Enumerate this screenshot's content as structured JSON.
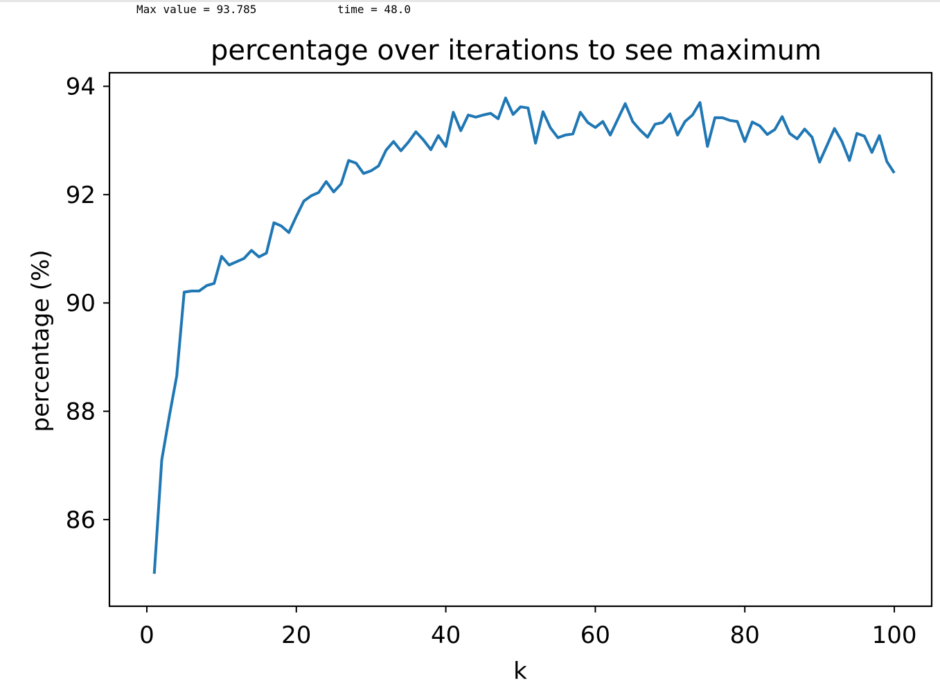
{
  "output": {
    "max_value_text": "Max value = 93.785",
    "time_text": "time = 48.0"
  },
  "chart_data": {
    "type": "line",
    "title": "percentage over iterations to see maximum",
    "xlabel": "k",
    "ylabel": "percentage (%)",
    "xlim": [
      -5,
      105
    ],
    "ylim": [
      84.4,
      94.25
    ],
    "xticks": [
      0,
      20,
      40,
      60,
      80,
      100
    ],
    "yticks": [
      86,
      88,
      90,
      92,
      94
    ],
    "grid": false,
    "series": [
      {
        "color": "#1f77b4",
        "x": [
          1,
          2,
          3,
          4,
          5,
          6,
          7,
          8,
          9,
          10,
          11,
          12,
          13,
          14,
          15,
          16,
          17,
          18,
          19,
          20,
          21,
          22,
          23,
          24,
          25,
          26,
          27,
          28,
          29,
          30,
          31,
          32,
          33,
          34,
          35,
          36,
          37,
          38,
          39,
          40,
          41,
          42,
          43,
          44,
          45,
          46,
          47,
          48,
          49,
          50,
          51,
          52,
          53,
          54,
          55,
          56,
          57,
          58,
          59,
          60,
          61,
          62,
          63,
          64,
          65,
          66,
          67,
          68,
          69,
          70,
          71,
          72,
          73,
          74,
          75,
          76,
          77,
          78,
          79,
          80,
          81,
          82,
          83,
          84,
          85,
          86,
          87,
          88,
          89,
          90,
          91,
          92,
          93,
          94,
          95,
          96,
          97,
          98,
          99,
          100
        ],
        "values": [
          85.0,
          87.1,
          87.9,
          88.65,
          90.2,
          90.22,
          90.22,
          90.32,
          90.36,
          90.86,
          90.7,
          90.76,
          90.82,
          90.97,
          90.85,
          90.92,
          91.48,
          91.42,
          91.3,
          91.6,
          91.88,
          91.98,
          92.04,
          92.24,
          92.05,
          92.2,
          92.63,
          92.58,
          92.39,
          92.44,
          92.53,
          92.82,
          92.98,
          92.81,
          92.97,
          93.16,
          93.01,
          92.83,
          93.09,
          92.89,
          93.52,
          93.18,
          93.47,
          93.43,
          93.47,
          93.5,
          93.4,
          93.785,
          93.48,
          93.62,
          93.6,
          92.95,
          93.53,
          93.23,
          93.05,
          93.1,
          93.12,
          93.52,
          93.33,
          93.24,
          93.35,
          93.1,
          93.39,
          93.68,
          93.35,
          93.19,
          93.06,
          93.3,
          93.33,
          93.49,
          93.1,
          93.35,
          93.47,
          93.7,
          92.89,
          93.42,
          93.42,
          93.37,
          93.35,
          92.98,
          93.34,
          93.27,
          93.11,
          93.2,
          93.44,
          93.13,
          93.03,
          93.21,
          93.06,
          92.6,
          92.91,
          93.22,
          92.98,
          92.63,
          93.13,
          93.08,
          92.78,
          93.09,
          92.61,
          92.4
        ]
      }
    ]
  }
}
